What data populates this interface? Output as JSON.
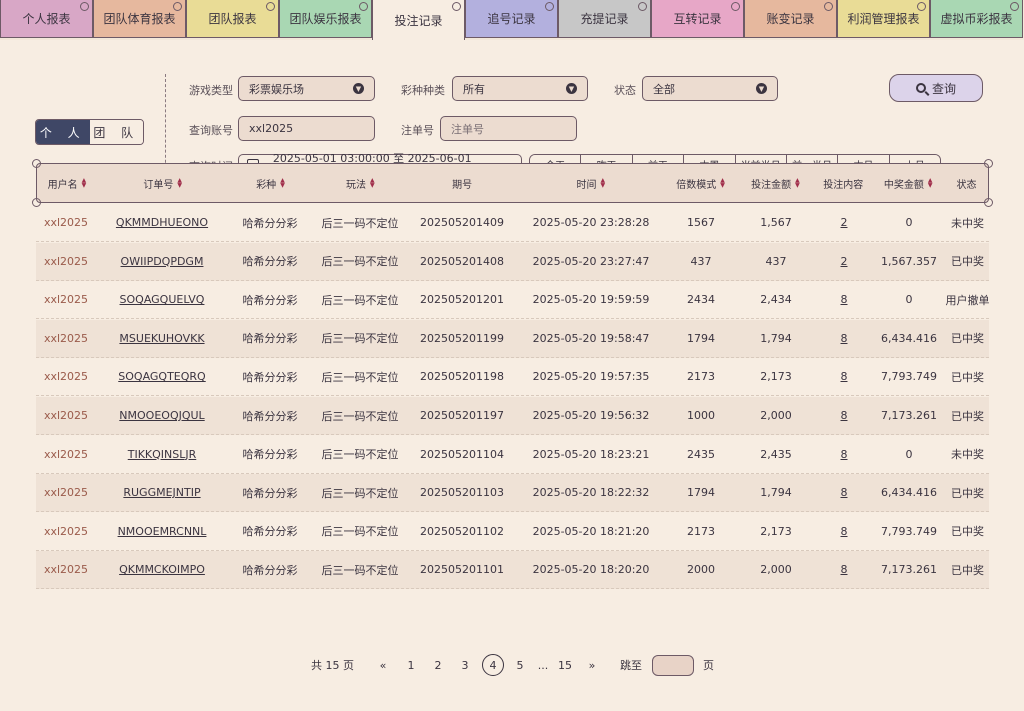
{
  "tabs": [
    {
      "label": "个人报表",
      "color": "#d8a7c6"
    },
    {
      "label": "团队体育报表",
      "color": "#e6b89e"
    },
    {
      "label": "团队报表",
      "color": "#e9dc96"
    },
    {
      "label": "团队娱乐报表",
      "color": "#a9d7b3"
    },
    {
      "label": "投注记录",
      "color": "#f7ede2",
      "active": true
    },
    {
      "label": "追号记录",
      "color": "#b3b0de"
    },
    {
      "label": "充提记录",
      "color": "#c7c7c7"
    },
    {
      "label": "互转记录",
      "color": "#e7a7c7"
    },
    {
      "label": "账变记录",
      "color": "#e6b89e"
    },
    {
      "label": "利润管理报表",
      "color": "#e9dc96"
    },
    {
      "label": "虚拟币彩报表",
      "color": "#a9d7b3"
    }
  ],
  "scope_toggle": {
    "individual": "个 人",
    "team": "团 队"
  },
  "filters": {
    "game_type_label": "游戏类型",
    "game_type_value": "彩票娱乐场",
    "lottery_kind_label": "彩种种类",
    "lottery_kind_value": "所有",
    "status_label": "状态",
    "status_value": "全部",
    "account_label": "查询账号",
    "account_value": "xxl2025",
    "order_label": "注单号",
    "order_placeholder": "注单号",
    "time_label": "查询时间",
    "time_range": "2025-05-01 03:00:00 至 2025-06-01 03:00:00",
    "quick_ranges": [
      "今天",
      "昨天",
      "前天",
      "本周",
      "当前半月",
      "前一半月",
      "本月",
      "上月"
    ],
    "search_label": "查询"
  },
  "table": {
    "headers": [
      "用户名",
      "订单号",
      "彩种",
      "玩法",
      "期号",
      "时间",
      "倍数模式",
      "投注金额",
      "投注内容",
      "中奖金额",
      "状态"
    ],
    "sortable": [
      true,
      true,
      true,
      true,
      false,
      true,
      true,
      true,
      false,
      true,
      false
    ],
    "rows": [
      [
        "xxl2025",
        "QKMMDHUEONO",
        "哈希分分彩",
        "后三一码不定位",
        "202505201409",
        "2025-05-20 23:28:28",
        "1567",
        "1,567",
        "2",
        "0",
        "未中奖"
      ],
      [
        "xxl2025",
        "OWIIPDQPDGM",
        "哈希分分彩",
        "后三一码不定位",
        "202505201408",
        "2025-05-20 23:27:47",
        "437",
        "437",
        "2",
        "1,567.357",
        "已中奖"
      ],
      [
        "xxl2025",
        "SOQAGQUELVQ",
        "哈希分分彩",
        "后三一码不定位",
        "202505201201",
        "2025-05-20 19:59:59",
        "2434",
        "2,434",
        "8",
        "0",
        "用户撤单"
      ],
      [
        "xxl2025",
        "MSUEKUHOVKK",
        "哈希分分彩",
        "后三一码不定位",
        "202505201199",
        "2025-05-20 19:58:47",
        "1794",
        "1,794",
        "8",
        "6,434.416",
        "已中奖"
      ],
      [
        "xxl2025",
        "SOQAGQTEQRQ",
        "哈希分分彩",
        "后三一码不定位",
        "202505201198",
        "2025-05-20 19:57:35",
        "2173",
        "2,173",
        "8",
        "7,793.749",
        "已中奖"
      ],
      [
        "xxl2025",
        "NMOOEOQJQUL",
        "哈希分分彩",
        "后三一码不定位",
        "202505201197",
        "2025-05-20 19:56:32",
        "1000",
        "2,000",
        "8",
        "7,173.261",
        "已中奖"
      ],
      [
        "xxl2025",
        "TIKKQINSLJR",
        "哈希分分彩",
        "后三一码不定位",
        "202505201104",
        "2025-05-20 18:23:21",
        "2435",
        "2,435",
        "8",
        "0",
        "未中奖"
      ],
      [
        "xxl2025",
        "RUGGMEJNTIP",
        "哈希分分彩",
        "后三一码不定位",
        "202505201103",
        "2025-05-20 18:22:32",
        "1794",
        "1,794",
        "8",
        "6,434.416",
        "已中奖"
      ],
      [
        "xxl2025",
        "NMOOEMRCNNL",
        "哈希分分彩",
        "后三一码不定位",
        "202505201102",
        "2025-05-20 18:21:20",
        "2173",
        "2,173",
        "8",
        "7,793.749",
        "已中奖"
      ],
      [
        "xxl2025",
        "QKMMCKOIMPO",
        "哈希分分彩",
        "后三一码不定位",
        "202505201101",
        "2025-05-20 18:20:20",
        "2000",
        "2,000",
        "8",
        "7,173.261",
        "已中奖"
      ]
    ]
  },
  "pagination": {
    "total_label": "共 15 页",
    "prev": "«",
    "pages": [
      "1",
      "2",
      "3",
      "4",
      "5",
      "...",
      "15"
    ],
    "current": "4",
    "next": "»",
    "jump_label": "跳至",
    "page_suffix": "页"
  }
}
